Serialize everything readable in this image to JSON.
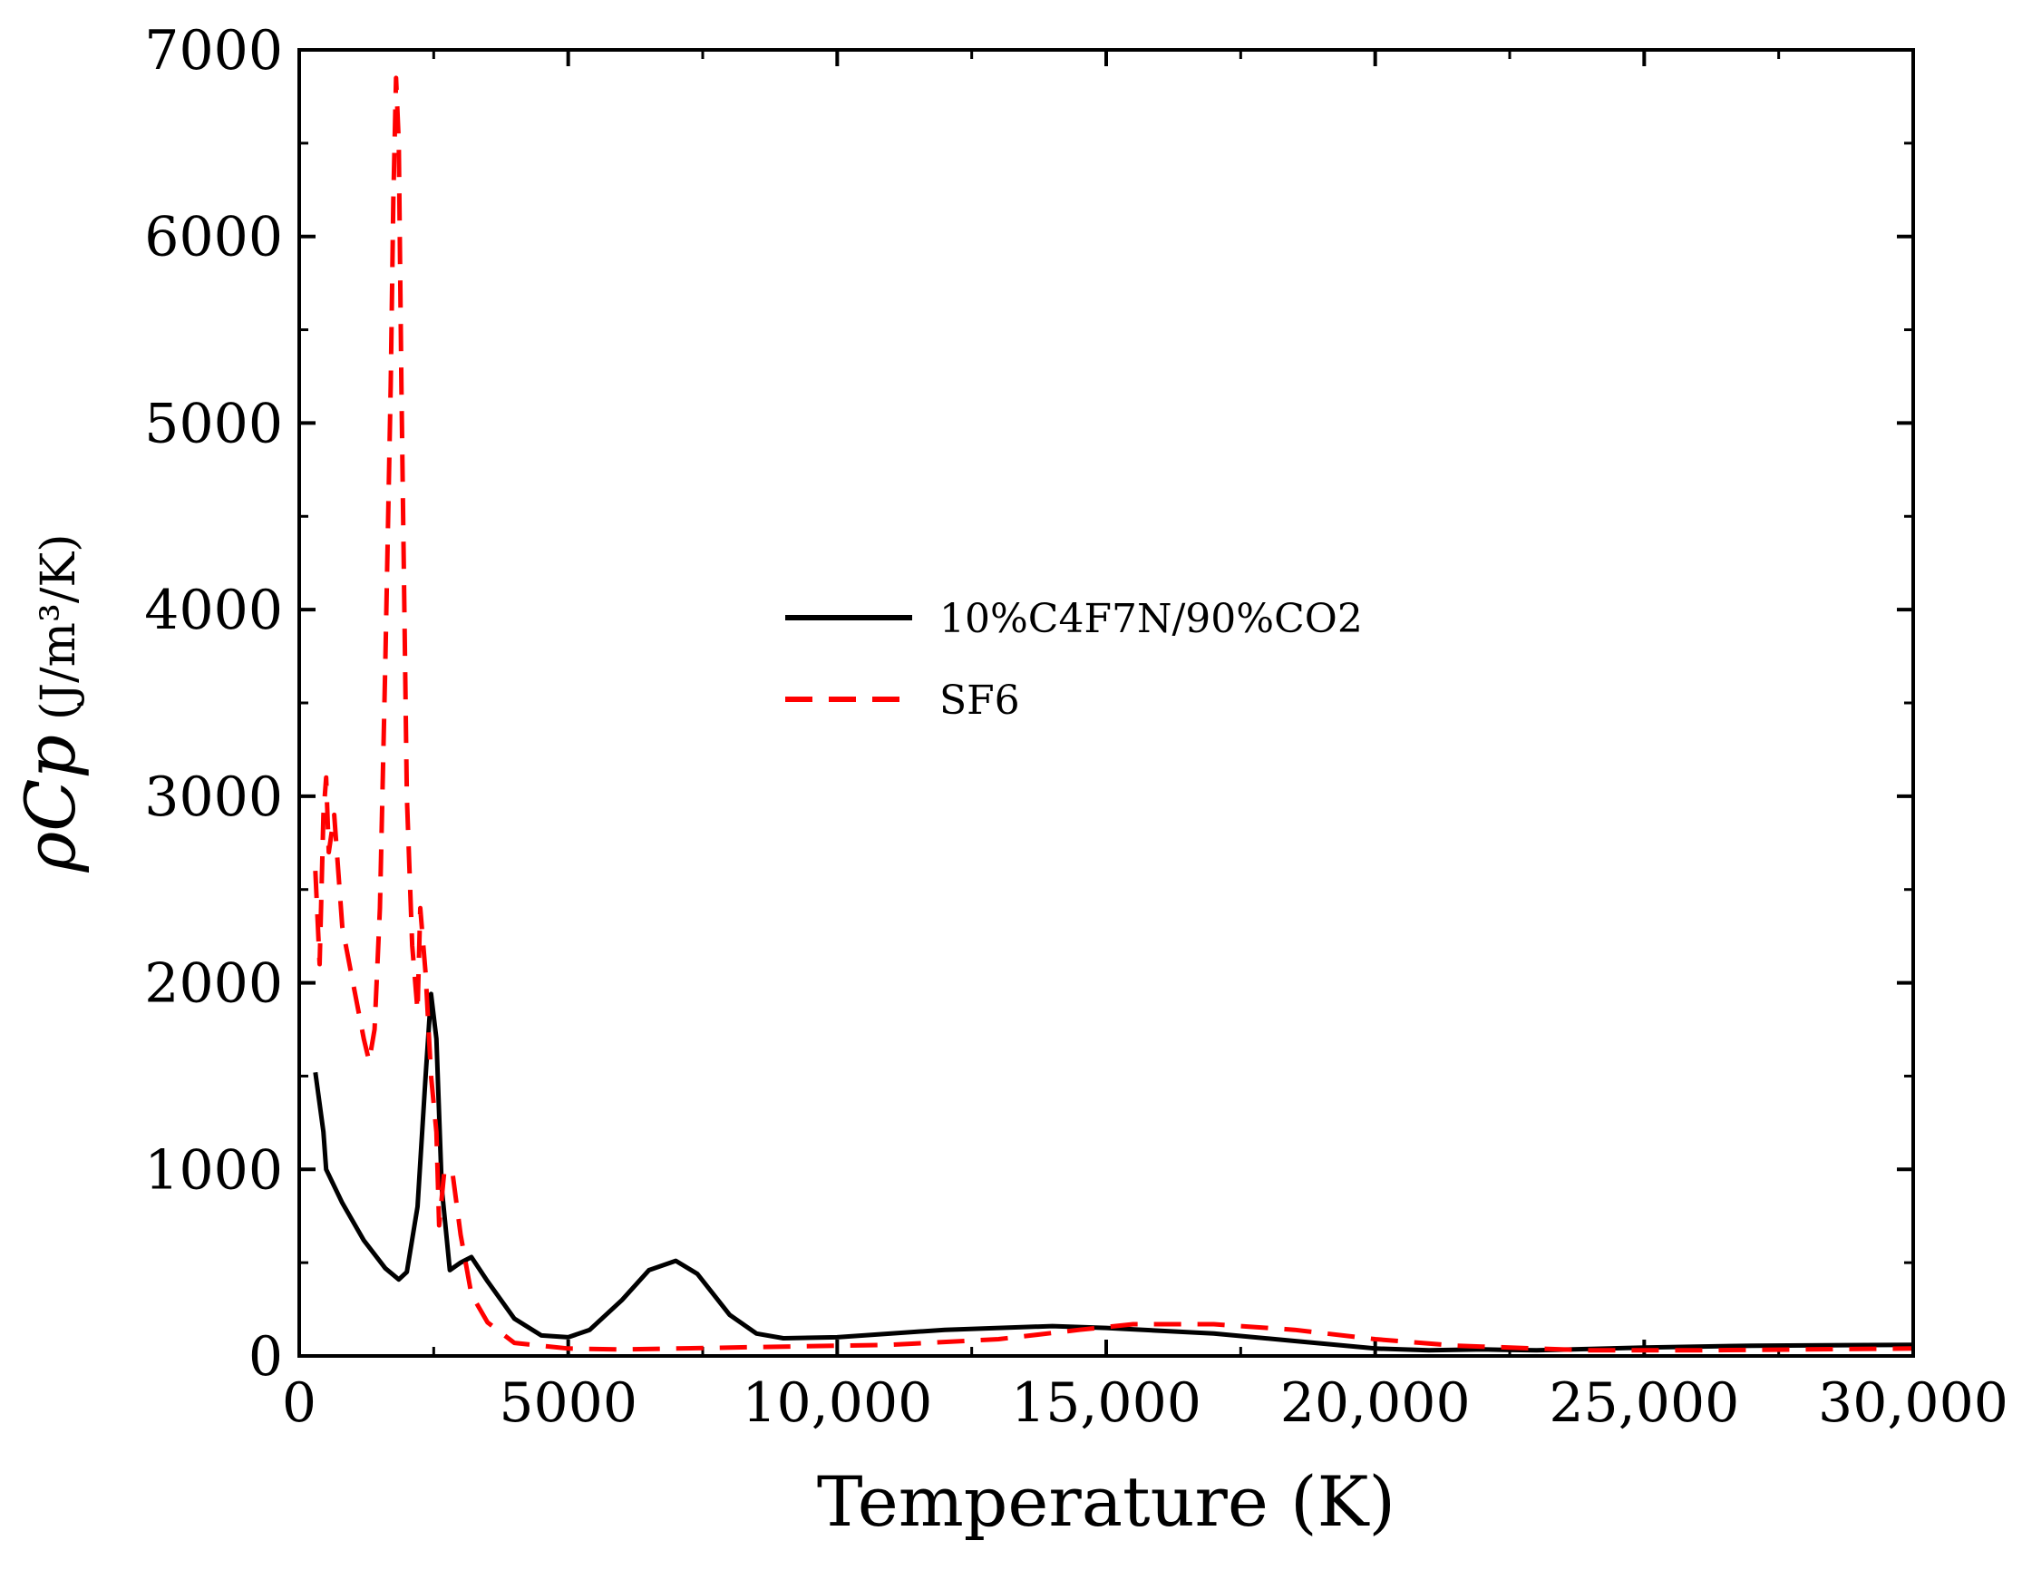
{
  "chart_data": {
    "type": "line",
    "title": "",
    "xlabel": "Temperature (K)",
    "ylabel": {
      "symbol": "ρCp",
      "unit": "(J/m³/K)"
    },
    "xlim": [
      0,
      30000
    ],
    "ylim": [
      0,
      7000
    ],
    "x_ticks": [
      0,
      5000,
      10000,
      15000,
      20000,
      25000,
      30000
    ],
    "x_tick_labels": [
      "0",
      "5000",
      "10,000",
      "15,000",
      "20,000",
      "25,000",
      "30,000"
    ],
    "y_ticks": [
      0,
      1000,
      2000,
      3000,
      4000,
      5000,
      6000,
      7000
    ],
    "y_tick_labels": [
      "0",
      "1000",
      "2000",
      "3000",
      "4000",
      "5000",
      "6000",
      "7000"
    ],
    "grid": false,
    "legend_position": "center",
    "series": [
      {
        "name": "10%C4F7N/90%CO2",
        "color": "#000000",
        "style": "solid",
        "points": [
          [
            300,
            1520
          ],
          [
            450,
            1200
          ],
          [
            500,
            1000
          ],
          [
            800,
            820
          ],
          [
            1200,
            620
          ],
          [
            1600,
            470
          ],
          [
            1850,
            410
          ],
          [
            2000,
            450
          ],
          [
            2200,
            800
          ],
          [
            2350,
            1500
          ],
          [
            2450,
            1940
          ],
          [
            2550,
            1700
          ],
          [
            2650,
            900
          ],
          [
            2800,
            460
          ],
          [
            3000,
            500
          ],
          [
            3200,
            530
          ],
          [
            3500,
            400
          ],
          [
            4000,
            200
          ],
          [
            4500,
            110
          ],
          [
            5000,
            100
          ],
          [
            5400,
            140
          ],
          [
            6000,
            300
          ],
          [
            6500,
            460
          ],
          [
            7000,
            510
          ],
          [
            7400,
            440
          ],
          [
            8000,
            220
          ],
          [
            8500,
            120
          ],
          [
            9000,
            95
          ],
          [
            10000,
            100
          ],
          [
            12000,
            140
          ],
          [
            14000,
            160
          ],
          [
            15000,
            150
          ],
          [
            17000,
            120
          ],
          [
            18500,
            80
          ],
          [
            20000,
            40
          ],
          [
            21000,
            30
          ],
          [
            22000,
            35
          ],
          [
            23000,
            30
          ],
          [
            25000,
            45
          ],
          [
            27000,
            55
          ],
          [
            30000,
            60
          ]
        ]
      },
      {
        "name": "SF6",
        "color": "#ff0000",
        "style": "dashed",
        "points": [
          [
            300,
            2600
          ],
          [
            380,
            2100
          ],
          [
            450,
            2900
          ],
          [
            500,
            3100
          ],
          [
            550,
            2700
          ],
          [
            650,
            2900
          ],
          [
            800,
            2300
          ],
          [
            1000,
            2000
          ],
          [
            1200,
            1700
          ],
          [
            1300,
            1580
          ],
          [
            1400,
            1750
          ],
          [
            1500,
            2400
          ],
          [
            1600,
            3700
          ],
          [
            1700,
            5200
          ],
          [
            1750,
            6200
          ],
          [
            1800,
            6850
          ],
          [
            1850,
            6500
          ],
          [
            1900,
            5200
          ],
          [
            2000,
            3000
          ],
          [
            2100,
            2200
          ],
          [
            2200,
            1850
          ],
          [
            2250,
            2400
          ],
          [
            2350,
            2050
          ],
          [
            2450,
            1500
          ],
          [
            2550,
            1200
          ],
          [
            2600,
            700
          ],
          [
            2700,
            1000
          ],
          [
            2850,
            980
          ],
          [
            3000,
            650
          ],
          [
            3200,
            330
          ],
          [
            3500,
            180
          ],
          [
            4000,
            70
          ],
          [
            5000,
            40
          ],
          [
            6000,
            35
          ],
          [
            7000,
            40
          ],
          [
            9000,
            50
          ],
          [
            11000,
            60
          ],
          [
            13000,
            90
          ],
          [
            14500,
            140
          ],
          [
            15500,
            170
          ],
          [
            17000,
            170
          ],
          [
            18500,
            140
          ],
          [
            20000,
            90
          ],
          [
            21500,
            55
          ],
          [
            22000,
            50
          ],
          [
            23000,
            40
          ],
          [
            24000,
            30
          ],
          [
            26000,
            30
          ],
          [
            28000,
            35
          ],
          [
            30000,
            40
          ]
        ]
      }
    ]
  }
}
